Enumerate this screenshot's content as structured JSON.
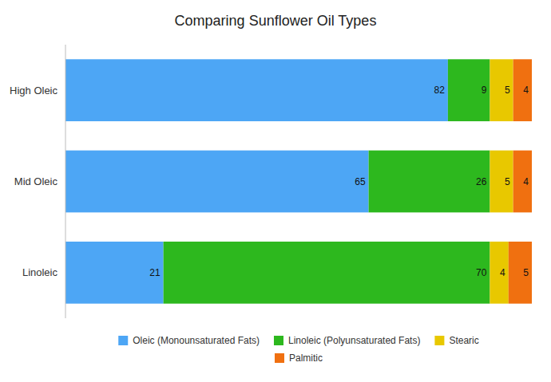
{
  "chart_data": {
    "type": "bar",
    "orientation": "horizontal",
    "stacked": true,
    "title": "Comparing Sunflower Oil Types",
    "categories": [
      "High Oleic",
      "Mid Oleic",
      "Linoleic"
    ],
    "series": [
      {
        "name": "Oleic (Monounsaturated Fats)",
        "color": "#4da6f5",
        "values": [
          82,
          65,
          21
        ]
      },
      {
        "name": "Linoleic (Polyunsaturated Fats)",
        "color": "#2db81e",
        "values": [
          9,
          26,
          70
        ]
      },
      {
        "name": "Stearic",
        "color": "#e8c800",
        "values": [
          5,
          5,
          4
        ]
      },
      {
        "name": "Palmitic",
        "color": "#f07010",
        "values": [
          4,
          4,
          5
        ]
      }
    ],
    "xlim": [
      0,
      100
    ],
    "grid": false,
    "tick_labels": "y",
    "data_labels": true,
    "legend": "bottom"
  }
}
